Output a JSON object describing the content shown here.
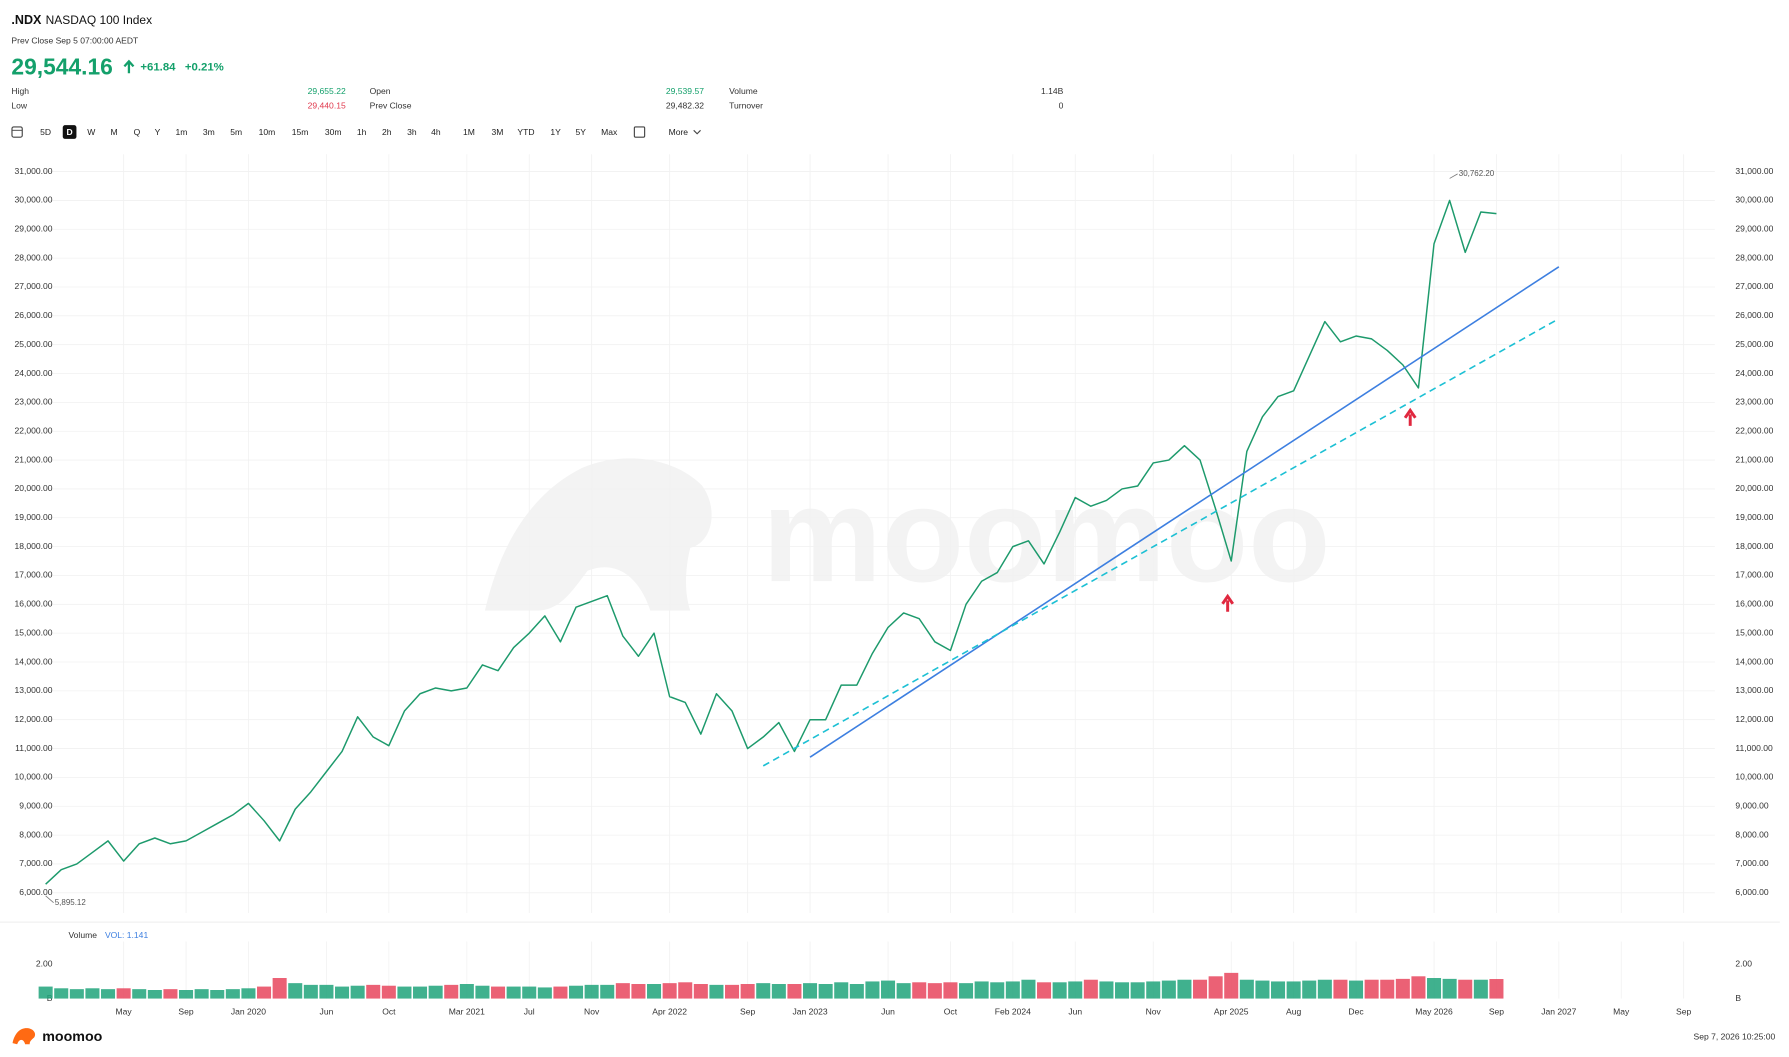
{
  "header": {
    "symbol": ".NDX",
    "name": "NASDAQ 100 Index",
    "status": "Prev Close Sep 5 07:00:00 AEDT",
    "price": "29,544.16",
    "change": "+61.84",
    "change_pct": "+0.21%",
    "color": "#14a06b",
    "stats": [
      {
        "label": "High",
        "value": "29,655.22",
        "color": "#14a06b"
      },
      {
        "label": "Low",
        "value": "29,440.15",
        "color": "#e03a4e"
      },
      {
        "label": "Open",
        "value": "29,539.57",
        "color": "#14a06b"
      },
      {
        "label": "Prev Close",
        "value": "29,482.32",
        "color": "#333333"
      },
      {
        "label": "Volume",
        "value": "1.14B",
        "color": "#333333"
      },
      {
        "label": "Turnover",
        "value": "0",
        "color": "#333333"
      }
    ]
  },
  "toolbar": {
    "buttons": [
      "5D",
      "D",
      "W",
      "M",
      "Q",
      "Y",
      "1m",
      "3m",
      "5m",
      "10m",
      "15m",
      "30m",
      "1h",
      "2h",
      "3h",
      "4h",
      "1M",
      "3M",
      "YTD",
      "1Y",
      "5Y",
      "Max"
    ],
    "active": "D",
    "more": "More"
  },
  "watermark": "moomoo",
  "footer": {
    "brand": "moomoo",
    "timestamp": "Sep 7, 2026 10:25:00"
  },
  "chart_data": [
    {
      "type": "line",
      "color": "#1d9a6c",
      "up_color": "#1fa37a",
      "down_color": "#e8455d",
      "x": [
        "2018-12",
        "2019-01",
        "2019-02",
        "2019-03",
        "2019-04",
        "2019-05",
        "2019-06",
        "2019-07",
        "2019-08",
        "2019-09",
        "2019-10",
        "2019-11",
        "2019-12",
        "2020-01",
        "2020-02",
        "2020-03",
        "2020-04",
        "2020-05",
        "2020-06",
        "2020-07",
        "2020-08",
        "2020-09",
        "2020-10",
        "2020-11",
        "2020-12",
        "2021-01",
        "2021-02",
        "2021-03",
        "2021-04",
        "2021-05",
        "2021-06",
        "2021-07",
        "2021-08",
        "2021-09",
        "2021-10",
        "2021-11",
        "2021-12",
        "2022-01",
        "2022-02",
        "2022-03",
        "2022-04",
        "2022-05",
        "2022-06",
        "2022-07",
        "2022-08",
        "2022-09",
        "2022-10",
        "2022-11",
        "2022-12",
        "2023-01",
        "2023-02",
        "2023-03",
        "2023-04",
        "2023-05",
        "2023-06",
        "2023-07",
        "2023-08",
        "2023-09",
        "2023-10",
        "2023-11",
        "2023-12",
        "2024-01",
        "2024-02",
        "2024-03",
        "2024-04",
        "2024-05",
        "2024-06",
        "2024-07",
        "2024-08",
        "2024-09",
        "2024-10",
        "2024-11",
        "2024-12",
        "2025-01",
        "2025-02",
        "2025-03",
        "2025-04",
        "2025-05",
        "2025-06",
        "2025-07",
        "2025-08",
        "2025-09",
        "2025-10",
        "2025-11",
        "2025-12",
        "2026-01",
        "2026-02",
        "2026-03",
        "2026-04",
        "2026-05",
        "2026-06",
        "2026-07",
        "2026-08",
        "2026-09"
      ],
      "values": [
        6300,
        6800,
        7000,
        7400,
        7800,
        7100,
        7700,
        7900,
        7700,
        7800,
        8100,
        8400,
        8700,
        9100,
        8500,
        7800,
        8900,
        9500,
        10200,
        10900,
        12100,
        11400,
        11100,
        12300,
        12900,
        13100,
        13000,
        13100,
        13900,
        13700,
        14500,
        15000,
        15600,
        14700,
        15900,
        16100,
        16300,
        14900,
        14200,
        15000,
        12800,
        12600,
        11500,
        12900,
        12300,
        11000,
        11400,
        11900,
        10900,
        12000,
        12000,
        13200,
        13200,
        14300,
        15200,
        15700,
        15500,
        14700,
        14400,
        16000,
        16800,
        17100,
        18000,
        18200,
        17400,
        18500,
        19700,
        19400,
        19600,
        20000,
        20100,
        20900,
        21000,
        21500,
        21000,
        19300,
        17500,
        21300,
        22500,
        23200,
        23400,
        24600,
        25800,
        25100,
        25300,
        25200,
        24800,
        24300,
        23500,
        28500,
        30000,
        28200,
        29600,
        29544.16
      ],
      "xlim": [
        "2018-12",
        "2027-11"
      ],
      "xticks": [
        {
          "value": "2019-05",
          "label": "May"
        },
        {
          "value": "2019-09",
          "label": "Sep"
        },
        {
          "value": "2020-01",
          "label": "Jan 2020"
        },
        {
          "value": "2020-06",
          "label": "Jun"
        },
        {
          "value": "2020-10",
          "label": "Oct"
        },
        {
          "value": "2021-03",
          "label": "Mar 2021"
        },
        {
          "value": "2021-07",
          "label": "Jul"
        },
        {
          "value": "2021-11",
          "label": "Nov"
        },
        {
          "value": "2022-04",
          "label": "Apr 2022"
        },
        {
          "value": "2022-09",
          "label": "Sep"
        },
        {
          "value": "2023-01",
          "label": "Jan 2023"
        },
        {
          "value": "2023-06",
          "label": "Jun"
        },
        {
          "value": "2023-10",
          "label": "Oct"
        },
        {
          "value": "2024-02",
          "label": "Feb 2024"
        },
        {
          "value": "2024-06",
          "label": "Jun"
        },
        {
          "value": "2024-11",
          "label": "Nov"
        },
        {
          "value": "2025-04",
          "label": "Apr 2025"
        },
        {
          "value": "2025-08",
          "label": "Aug"
        },
        {
          "value": "2025-12",
          "label": "Dec"
        },
        {
          "value": "2026-05",
          "label": "May 2026"
        },
        {
          "value": "2026-09",
          "label": "Sep"
        },
        {
          "value": "2027-01",
          "label": "Jan 2027"
        },
        {
          "value": "2027-05",
          "label": "May"
        },
        {
          "value": "2027-09",
          "label": "Sep"
        }
      ],
      "ylim": [
        5300,
        31600
      ],
      "yticks": [
        {
          "value": 6000,
          "label": "6,000.00"
        },
        {
          "value": 7000,
          "label": "7,000.00"
        },
        {
          "value": 8000,
          "label": "8,000.00"
        },
        {
          "value": 9000,
          "label": "9,000.00"
        },
        {
          "value": 10000,
          "label": "10,000.00"
        },
        {
          "value": 11000,
          "label": "11,000.00"
        },
        {
          "value": 12000,
          "label": "12,000.00"
        },
        {
          "value": 13000,
          "label": "13,000.00"
        },
        {
          "value": 14000,
          "label": "14,000.00"
        },
        {
          "value": 15000,
          "label": "15,000.00"
        },
        {
          "value": 16000,
          "label": "16,000.00"
        },
        {
          "value": 17000,
          "label": "17,000.00"
        },
        {
          "value": 18000,
          "label": "18,000.00"
        },
        {
          "value": 19000,
          "label": "19,000.00"
        },
        {
          "value": 20000,
          "label": "20,000.00"
        },
        {
          "value": 21000,
          "label": "21,000.00"
        },
        {
          "value": 22000,
          "label": "22,000.00"
        },
        {
          "value": 23000,
          "label": "23,000.00"
        },
        {
          "value": 24000,
          "label": "24,000.00"
        },
        {
          "value": 25000,
          "label": "25,000.00"
        },
        {
          "value": 26000,
          "label": "26,000.00"
        },
        {
          "value": 27000,
          "label": "27,000.00"
        },
        {
          "value": 28000,
          "label": "28,000.00"
        },
        {
          "value": 29000,
          "label": "29,000.00"
        },
        {
          "value": 30000,
          "label": "30,000.00"
        },
        {
          "value": 31000,
          "label": "31,000.00"
        }
      ],
      "grid": true,
      "annotations": [
        {
          "x": "2026-06",
          "value": 30762.2,
          "label": "30,762.20"
        },
        {
          "x": "2018-12",
          "value": 5895.12,
          "label": "5,895.12"
        }
      ],
      "trendlines": [
        {
          "color": "#3d7fe0",
          "dashed": false,
          "x": [
            "2023-01",
            "2027-01"
          ],
          "values": [
            10700,
            27700
          ]
        },
        {
          "color": "#1cc0d4",
          "dashed": true,
          "x": [
            "2022-10",
            "2027-01"
          ],
          "values": [
            10400,
            25900
          ]
        }
      ]
    },
    {
      "type": "bar",
      "title": "Volume",
      "subtitle": "VOL: 1.141",
      "subtitle_color": "#3d7fe0",
      "x": [
        "2018-12",
        "2019-01",
        "2019-02",
        "2019-03",
        "2019-04",
        "2019-05",
        "2019-06",
        "2019-07",
        "2019-08",
        "2019-09",
        "2019-10",
        "2019-11",
        "2019-12",
        "2020-01",
        "2020-02",
        "2020-03",
        "2020-04",
        "2020-05",
        "2020-06",
        "2020-07",
        "2020-08",
        "2020-09",
        "2020-10",
        "2020-11",
        "2020-12",
        "2021-01",
        "2021-02",
        "2021-03",
        "2021-04",
        "2021-05",
        "2021-06",
        "2021-07",
        "2021-08",
        "2021-09",
        "2021-10",
        "2021-11",
        "2021-12",
        "2022-01",
        "2022-02",
        "2022-03",
        "2022-04",
        "2022-05",
        "2022-06",
        "2022-07",
        "2022-08",
        "2022-09",
        "2022-10",
        "2022-11",
        "2022-12",
        "2023-01",
        "2023-02",
        "2023-03",
        "2023-04",
        "2023-05",
        "2023-06",
        "2023-07",
        "2023-08",
        "2023-09",
        "2023-10",
        "2023-11",
        "2023-12",
        "2024-01",
        "2024-02",
        "2024-03",
        "2024-04",
        "2024-05",
        "2024-06",
        "2024-07",
        "2024-08",
        "2024-09",
        "2024-10",
        "2024-11",
        "2024-12",
        "2025-01",
        "2025-02",
        "2025-03",
        "2025-04",
        "2025-05",
        "2025-06",
        "2025-07",
        "2025-08",
        "2025-09",
        "2025-10",
        "2025-11",
        "2025-12",
        "2026-01",
        "2026-02",
        "2026-03",
        "2026-04",
        "2026-05",
        "2026-06",
        "2026-07",
        "2026-08",
        "2026-09"
      ],
      "values": [
        0.7,
        0.6,
        0.55,
        0.6,
        0.55,
        0.6,
        0.55,
        0.5,
        0.55,
        0.5,
        0.55,
        0.5,
        0.55,
        0.6,
        0.7,
        1.2,
        0.9,
        0.8,
        0.8,
        0.7,
        0.75,
        0.8,
        0.75,
        0.7,
        0.7,
        0.75,
        0.8,
        0.85,
        0.75,
        0.7,
        0.7,
        0.7,
        0.65,
        0.7,
        0.75,
        0.8,
        0.8,
        0.9,
        0.85,
        0.85,
        0.9,
        0.95,
        0.85,
        0.8,
        0.8,
        0.85,
        0.9,
        0.85,
        0.85,
        0.9,
        0.85,
        0.95,
        0.85,
        1.0,
        1.05,
        0.9,
        0.95,
        0.9,
        0.95,
        0.9,
        1.0,
        0.95,
        1.0,
        1.1,
        0.95,
        0.95,
        1.0,
        1.1,
        1.0,
        0.95,
        0.95,
        1.0,
        1.05,
        1.1,
        1.1,
        1.3,
        1.5,
        1.1,
        1.05,
        1.0,
        1.0,
        1.05,
        1.1,
        1.1,
        1.05,
        1.1,
        1.1,
        1.15,
        1.3,
        1.2,
        1.15,
        1.1,
        1.1,
        1.141
      ],
      "ylim": [
        0,
        3.33
      ],
      "yticks": [
        {
          "value": 0,
          "label": "B"
        },
        {
          "value": 2,
          "label": "2.00"
        }
      ]
    }
  ]
}
